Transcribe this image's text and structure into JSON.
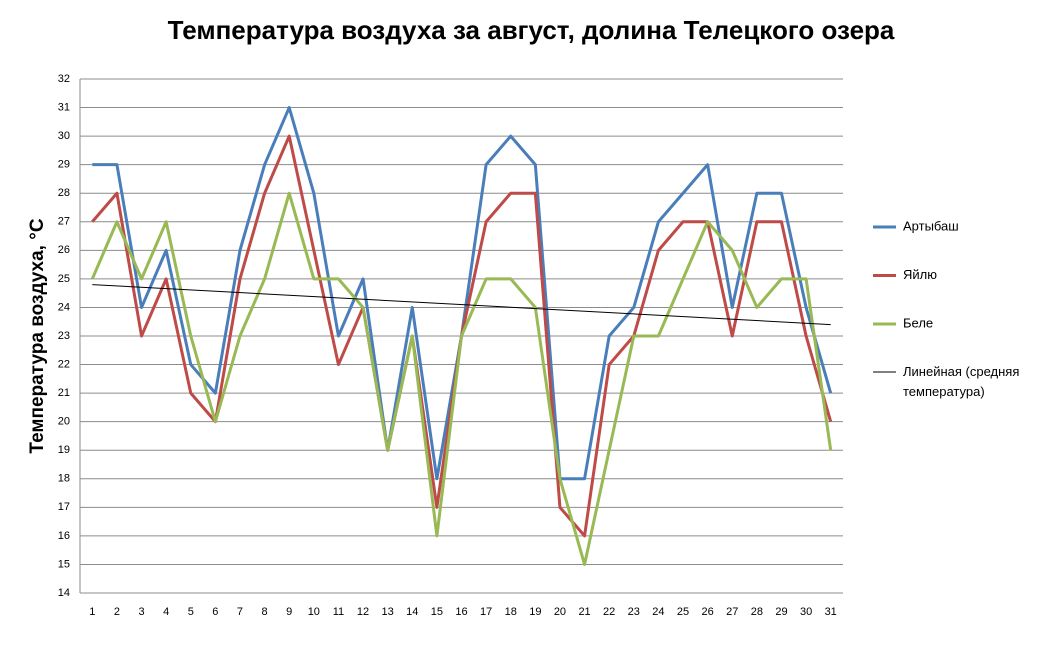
{
  "chart_data": {
    "type": "line",
    "title": "Температура воздуха за август, долина Телецкого озера",
    "y_label": "Температура воздуха, °С",
    "categories": [
      "1",
      "2",
      "3",
      "4",
      "5",
      "6",
      "7",
      "8",
      "9",
      "10",
      "11",
      "12",
      "13",
      "14",
      "15",
      "16",
      "17",
      "18",
      "19",
      "20",
      "21",
      "22",
      "23",
      "24",
      "25",
      "26",
      "27",
      "28",
      "29",
      "30",
      "31"
    ],
    "series": [
      {
        "name": "Артыбаш",
        "color": "#4a7ebb",
        "values": [
          29,
          29,
          24,
          26,
          22,
          21,
          26,
          29,
          31,
          28,
          23,
          25,
          19,
          24,
          18,
          23,
          29,
          30,
          29,
          18,
          18,
          23,
          24,
          27,
          28,
          29,
          24,
          28,
          28,
          24,
          21
        ]
      },
      {
        "name": "Яйлю",
        "color": "#be4b48",
        "values": [
          27,
          28,
          23,
          25,
          21,
          20,
          25,
          28,
          30,
          26,
          22,
          24,
          19,
          23,
          17,
          23,
          27,
          28,
          28,
          17,
          16,
          22,
          23,
          26,
          27,
          27,
          23,
          27,
          27,
          23,
          20
        ]
      },
      {
        "name": "Беле",
        "color": "#98b954",
        "values": [
          25,
          27,
          25,
          27,
          23,
          20,
          23,
          25,
          28,
          25,
          25,
          24,
          19,
          23,
          16,
          23,
          25,
          25,
          24,
          18,
          15,
          19,
          23,
          23,
          25,
          27,
          26,
          24,
          25,
          25,
          19
        ]
      }
    ],
    "trend": {
      "name": "Линейная (средняя температура)",
      "color": "#000000",
      "values": [
        24.8,
        23.4
      ]
    },
    "ylim": [
      14,
      32
    ],
    "yticks": [
      14,
      15,
      16,
      17,
      18,
      19,
      20,
      21,
      22,
      23,
      24,
      25,
      26,
      27,
      28,
      29,
      30,
      31,
      32
    ],
    "grid": true,
    "legend": "right"
  }
}
